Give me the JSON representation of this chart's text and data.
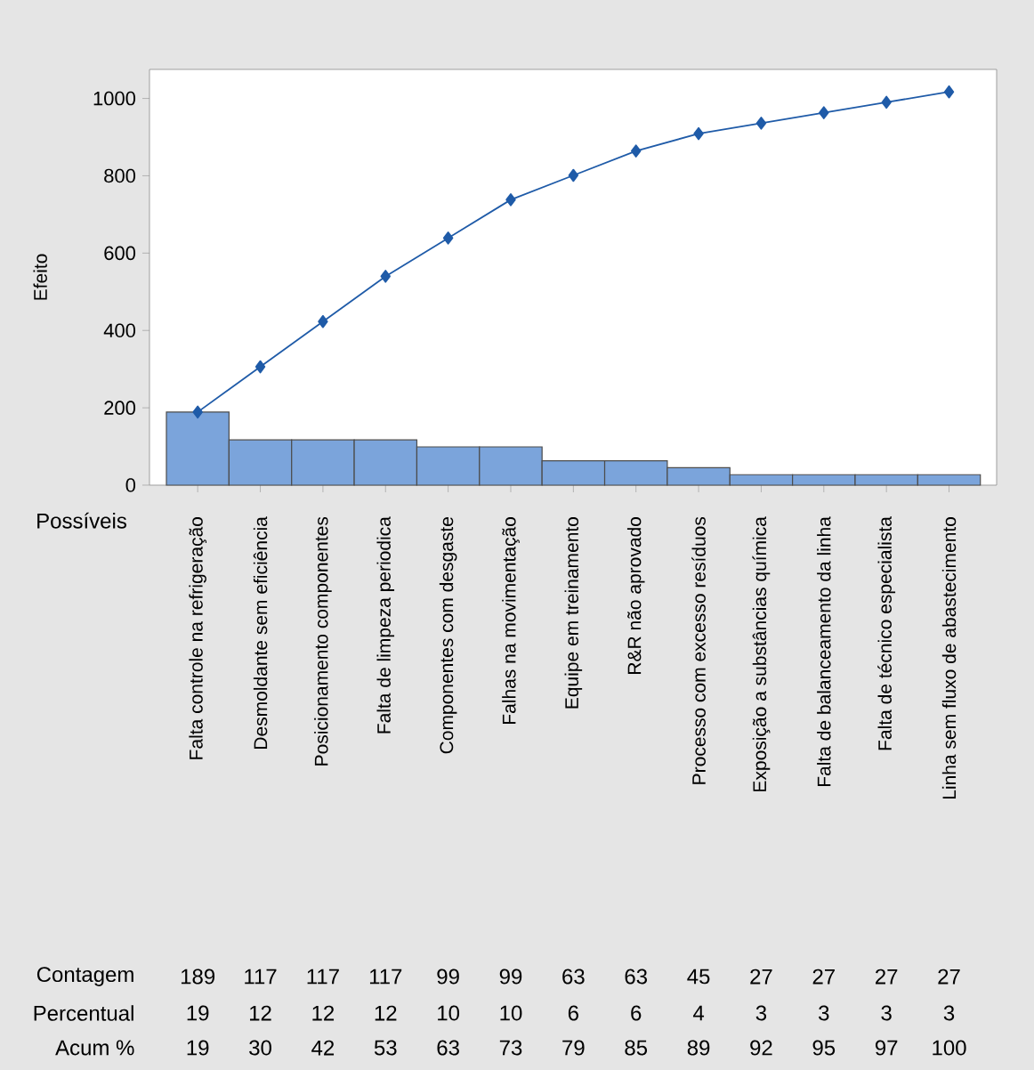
{
  "chart_data": {
    "type": "bar",
    "xlabel": "Possíveis",
    "ylabel": "Efeito",
    "categories": [
      "Falta controle na refrigeração",
      "Desmoldante sem eficiência",
      "Posicionamento componentes",
      "Falta de limpeza periodica",
      "Componentes com desgaste",
      "Falhas na movimentação",
      "Equipe em treinamento",
      "R&R não aprovado",
      "Processo com excesso resíduos",
      "Exposição a substâncias química",
      "Falta de balanceamento da linha",
      "Falta de técnico especialista",
      "Linha sem fluxo de abastecimento"
    ],
    "series": [
      {
        "color": "#7ba4db",
        "values": [
          189,
          117,
          117,
          117,
          99,
          99,
          63,
          63,
          45,
          27,
          27,
          27,
          27
        ],
        "value_labels": [
          "189",
          "117",
          "117",
          "117",
          "99",
          "99",
          "63",
          "63",
          "45",
          "27",
          "27",
          "27",
          "27"
        ]
      },
      {
        "type": "line",
        "color": "#1f5ba8",
        "marker": "diamond",
        "line_style": "solid",
        "values": [
          189,
          306,
          423,
          540,
          639,
          738,
          801,
          864,
          909,
          936,
          963,
          990,
          1017
        ]
      }
    ],
    "annotations": [
      "Contagem",
      "Percentual",
      "Acum %",
      "19",
      "12",
      "12",
      "12",
      "10",
      "10",
      "6",
      "6",
      "4",
      "3",
      "3",
      "3",
      "3",
      "19",
      "30",
      "42",
      "53",
      "63",
      "73",
      "79",
      "85",
      "89",
      "92",
      "95",
      "97",
      "100"
    ],
    "ylim": [
      0,
      1075
    ],
    "yticks": [
      0,
      200,
      400,
      600,
      800,
      1000
    ]
  }
}
